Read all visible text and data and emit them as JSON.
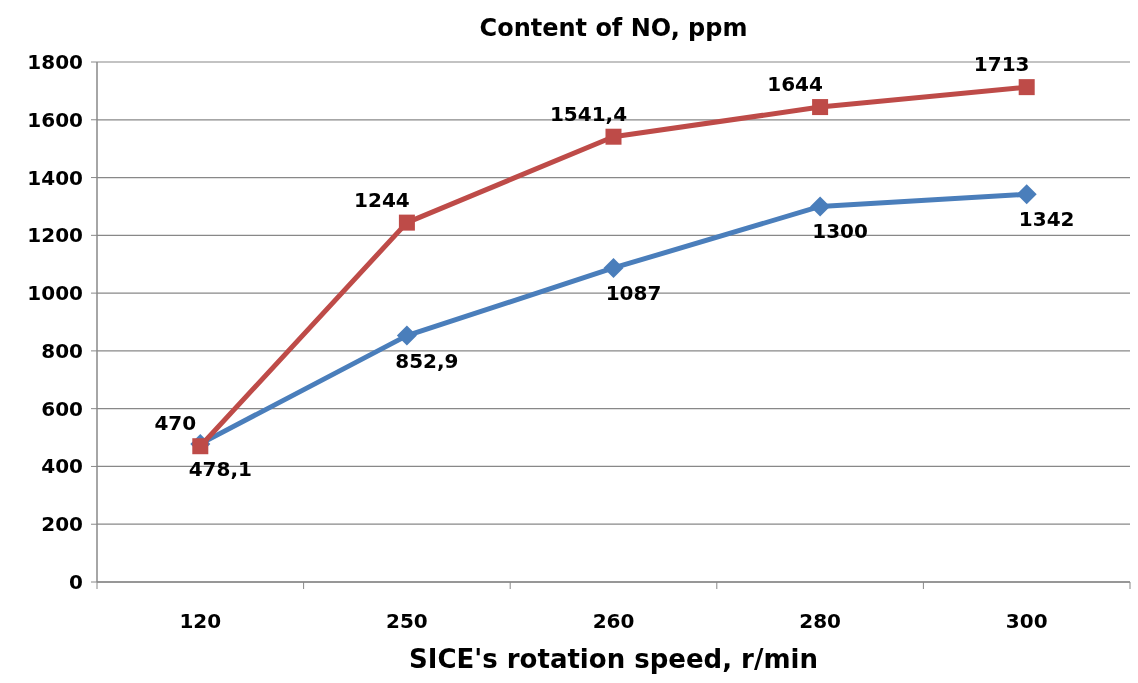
{
  "chart_data": {
    "type": "line",
    "title": "Content of NO, ppm",
    "xlabel": "SICE's rotation speed, r/min",
    "categories": [
      "120",
      "250",
      "260",
      "280",
      "300"
    ],
    "series": [
      {
        "color": "#4a7ebb",
        "marker": "diamond",
        "values": [
          478.1,
          852.9,
          1087,
          1300,
          1342
        ],
        "value_labels": [
          "478,1",
          "852,9",
          "1087",
          "1300",
          "1342"
        ]
      },
      {
        "color": "#be4b48",
        "marker": "square",
        "values": [
          470,
          1244,
          1541.4,
          1644,
          1713
        ],
        "value_labels": [
          "470",
          "1244",
          "1541,4",
          "1644",
          "1713"
        ]
      }
    ],
    "ylim": [
      0,
      1800
    ],
    "yticks": [
      0,
      200,
      400,
      600,
      800,
      1000,
      1200,
      1400,
      1600,
      1800
    ],
    "grid": "y",
    "line_style": "solid"
  }
}
